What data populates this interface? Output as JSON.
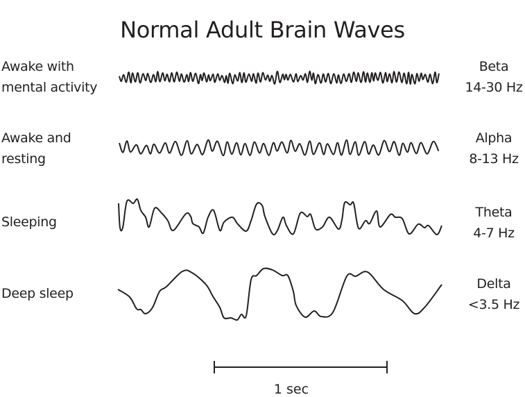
{
  "title": "Normal Adult Brain Waves",
  "rows": [
    {
      "state_lines": [
        "Awake with",
        "mental activity"
      ],
      "band": "Beta",
      "range": "14-30 Hz"
    },
    {
      "state_lines": [
        "Awake and",
        "resting"
      ],
      "band": "Alpha",
      "range": "8-13 Hz"
    },
    {
      "state_lines": [
        "Sleeping"
      ],
      "band": "Theta",
      "range": "4-7 Hz"
    },
    {
      "state_lines": [
        "Deep sleep"
      ],
      "band": "Delta",
      "range": "<3.5 Hz"
    }
  ],
  "scale_bar": {
    "label": "1 sec"
  },
  "colors": {
    "line": "#231f20",
    "background": "#ffffff"
  }
}
